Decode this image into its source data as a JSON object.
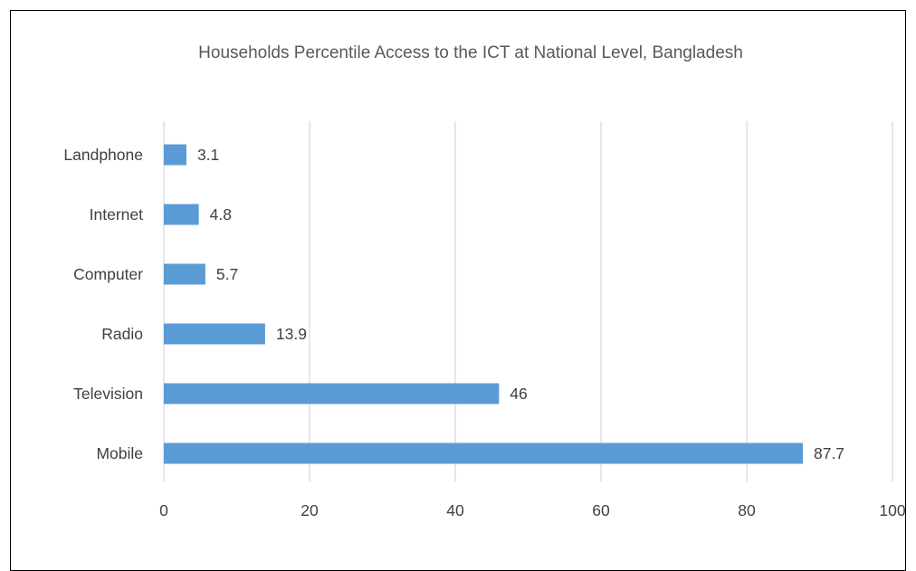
{
  "chart_data": {
    "type": "bar",
    "orientation": "horizontal",
    "title": "Households Percentile Access to the ICT at National Level, Bangladesh",
    "categories": [
      "Landphone",
      "Internet",
      "Computer",
      "Radio",
      "Television",
      "Mobile"
    ],
    "values": [
      3.1,
      4.8,
      5.7,
      13.9,
      46,
      87.7
    ],
    "data_labels": [
      "3.1",
      "4.8",
      "5.7",
      "13.9",
      "46",
      "87.7"
    ],
    "xlim": [
      0,
      100
    ],
    "xticks": [
      0,
      20,
      40,
      60,
      80,
      100
    ],
    "xtick_labels": [
      "0",
      "20",
      "40",
      "60",
      "80",
      "100"
    ],
    "xlabel": "",
    "ylabel": "",
    "grid": "vertical",
    "legend": "none",
    "colors": {
      "bar": "#5b9bd5",
      "text": "#404040",
      "title": "#595959",
      "grid": "#d9d9d9"
    }
  }
}
